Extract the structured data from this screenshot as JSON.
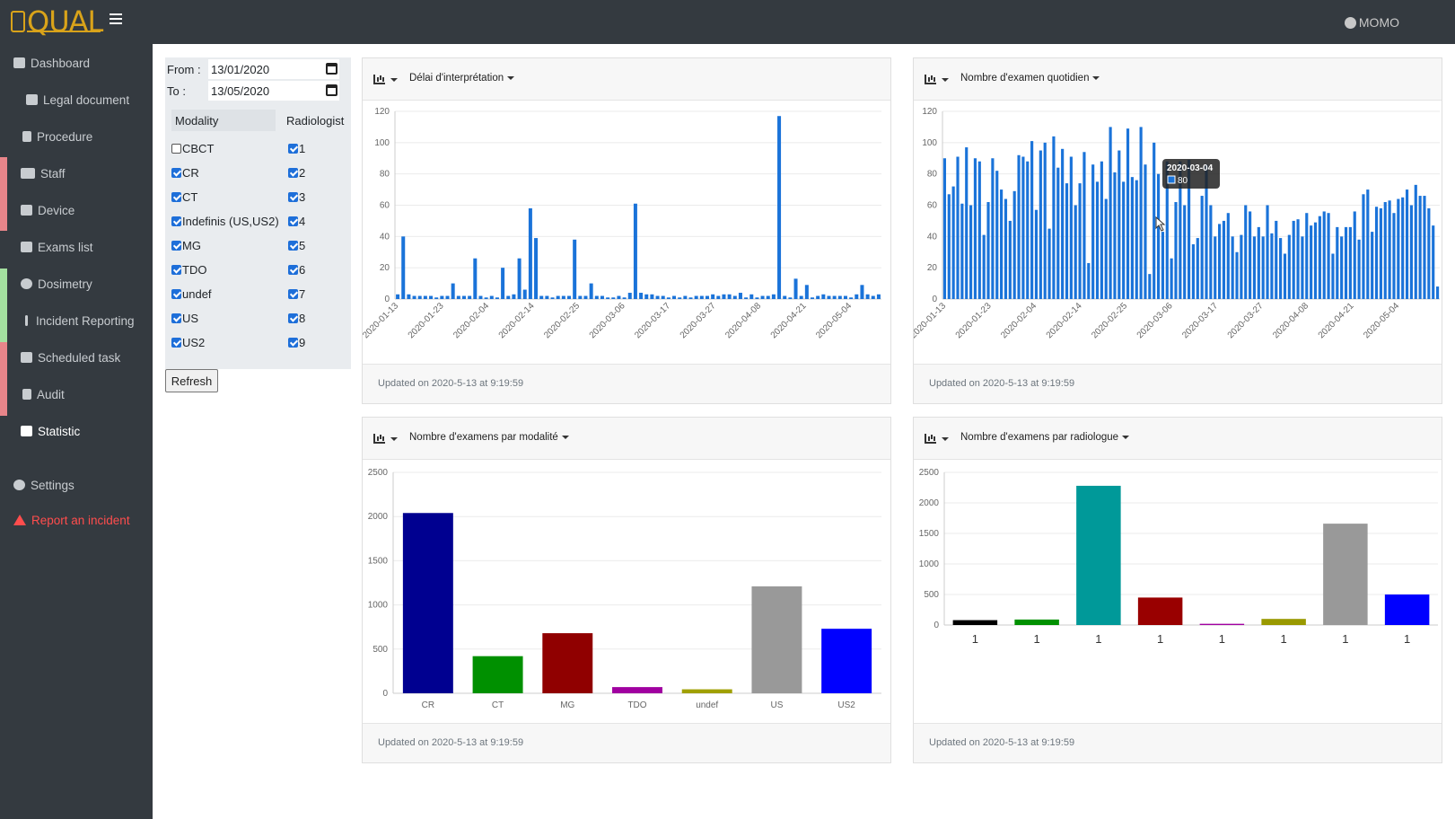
{
  "header": {
    "logo": "QUAL",
    "user": "MOMO"
  },
  "sidebar": {
    "items": [
      {
        "label": "Dashboard",
        "icon": "dashboard-icon"
      },
      {
        "label": "Legal document",
        "icon": "document-icon"
      },
      {
        "label": "Procedure",
        "icon": "file-icon"
      },
      {
        "label": "Staff",
        "icon": "users-icon"
      },
      {
        "label": "Device",
        "icon": "device-icon"
      },
      {
        "label": "Exams list",
        "icon": "list-icon"
      },
      {
        "label": "Dosimetry",
        "icon": "radiation-icon"
      },
      {
        "label": "Incident Reporting",
        "icon": "exclamation-icon"
      },
      {
        "label": "Scheduled task",
        "icon": "tasks-icon"
      },
      {
        "label": "Audit",
        "icon": "thumbtack-icon"
      },
      {
        "label": "Statistic",
        "icon": "chart-icon"
      },
      {
        "label": "Settings",
        "icon": "gear-icon"
      },
      {
        "label": "Report an incident",
        "icon": "warning-icon"
      }
    ],
    "strip_colors": [
      "#e8858a",
      "#a4e0a0",
      "#e8858a"
    ]
  },
  "filter": {
    "from_label": "From :",
    "from_value": "13/01/2020",
    "to_label": "To :",
    "to_value": "13/05/2020",
    "modality_header": "Modality",
    "radiologist_header": "Radiologist",
    "modalities": [
      {
        "label": "CBCT",
        "checked": false
      },
      {
        "label": "CR",
        "checked": true
      },
      {
        "label": "CT",
        "checked": true
      },
      {
        "label": "Indefinis (US,US2)",
        "checked": true
      },
      {
        "label": "MG",
        "checked": true
      },
      {
        "label": "TDO",
        "checked": true
      },
      {
        "label": "undef",
        "checked": true
      },
      {
        "label": "US",
        "checked": true
      },
      {
        "label": "US2",
        "checked": true
      }
    ],
    "radiologists": [
      "1",
      "2",
      "3",
      "4",
      "5",
      "6",
      "7",
      "8",
      "9"
    ],
    "refresh_label": "Refresh"
  },
  "cards": [
    {
      "title": "Délai d'interprétation",
      "footer": "Updated on 2020-5-13 at 9:19:59"
    },
    {
      "title": "Nombre d'examen quotidien",
      "footer": "Updated on 2020-5-13 at 9:19:59"
    },
    {
      "title": "Nombre d'examens par modalité",
      "footer": "Updated on 2020-5-13 at 9:19:59"
    },
    {
      "title": "Nombre d'examens par radiologue",
      "footer": "Updated on 2020-5-13 at 9:19:59"
    }
  ],
  "chart_data": [
    {
      "type": "bar",
      "title": "Délai d'interprétation",
      "ylim": [
        0,
        120
      ],
      "yticks": [
        0,
        20,
        40,
        60,
        80,
        100,
        120
      ],
      "xtick_labels": [
        "2020-01-13",
        "2020-01-23",
        "2020-02-04",
        "2020-02-14",
        "2020-02-25",
        "2020-03-06",
        "2020-03-17",
        "2020-03-27",
        "2020-04-08",
        "2020-04-21",
        "2020-05-04"
      ],
      "color": "#1a73d9",
      "values": [
        3,
        40,
        3,
        2,
        2,
        2,
        2,
        1,
        2,
        2,
        10,
        2,
        2,
        2,
        26,
        2,
        1,
        2,
        1,
        20,
        2,
        3,
        26,
        6,
        58,
        39,
        2,
        2,
        1,
        2,
        2,
        2,
        38,
        2,
        2,
        10,
        2,
        2,
        1,
        1,
        2,
        1,
        4,
        61,
        4,
        3,
        3,
        2,
        2,
        1,
        2,
        1,
        2,
        1,
        2,
        2,
        2,
        3,
        2,
        3,
        3,
        2,
        4,
        1,
        3,
        1,
        2,
        2,
        3,
        117,
        2,
        1,
        13,
        2,
        9,
        1,
        2,
        3,
        2,
        2,
        2,
        2,
        1,
        3,
        9,
        3,
        2,
        3
      ]
    },
    {
      "type": "bar",
      "title": "Nombre d'examen quotidien",
      "ylim": [
        0,
        120
      ],
      "yticks": [
        0,
        20,
        40,
        60,
        80,
        100,
        120
      ],
      "xtick_labels": [
        "2020-01-13",
        "2020-01-23",
        "2020-02-04",
        "2020-02-14",
        "2020-02-25",
        "2020-03-06",
        "2020-03-17",
        "2020-03-27",
        "2020-04-08",
        "2020-04-21",
        "2020-05-04"
      ],
      "color": "#1a73d9",
      "tooltip": {
        "date": "2020-03-04",
        "value": "80"
      },
      "values": [
        90,
        67,
        72,
        91,
        61,
        97,
        60,
        90,
        88,
        41,
        62,
        90,
        82,
        70,
        64,
        50,
        69,
        92,
        91,
        88,
        101,
        57,
        95,
        100,
        45,
        104,
        84,
        96,
        74,
        91,
        60,
        74,
        94,
        23,
        86,
        75,
        88,
        64,
        110,
        81,
        95,
        75,
        109,
        78,
        76,
        110,
        86,
        16,
        100,
        80,
        43,
        88,
        26,
        62,
        88,
        60,
        89,
        35,
        39,
        66,
        86,
        60,
        40,
        48,
        50,
        55,
        40,
        30,
        41,
        60,
        56,
        40,
        46,
        40,
        60,
        42,
        50,
        39,
        29,
        41,
        50,
        51,
        40,
        55,
        47,
        49,
        53,
        56,
        55,
        29,
        46,
        40,
        46,
        46,
        56,
        38,
        67,
        70,
        43,
        59,
        58,
        62,
        63,
        55,
        64,
        65,
        70,
        60,
        73,
        66,
        66,
        58,
        47,
        8
      ]
    },
    {
      "type": "bar",
      "title": "Nombre d'examens par modalité",
      "ylim": [
        0,
        2500
      ],
      "yticks": [
        0,
        500,
        1000,
        1500,
        2000,
        2500
      ],
      "categories": [
        "CR",
        "CT",
        "MG",
        "TDO",
        "undef",
        "US",
        "US2"
      ],
      "values": [
        2040,
        420,
        680,
        70,
        45,
        1210,
        730
      ],
      "colors": [
        "#000090",
        "#009000",
        "#900000",
        "#a000a0",
        "#a0a000",
        "#999999",
        "#0000ff"
      ]
    },
    {
      "type": "bar",
      "title": "Nombre d'examens par radiologue",
      "ylim": [
        0,
        2500
      ],
      "yticks": [
        0,
        500,
        1000,
        1500,
        2000,
        2500
      ],
      "categories": [
        "1",
        "1",
        "1",
        "1",
        "1",
        "1",
        "1",
        "1"
      ],
      "values": [
        80,
        90,
        2280,
        450,
        20,
        100,
        1660,
        500
      ],
      "colors": [
        "#000000",
        "#009000",
        "#009999",
        "#990000",
        "#a000a0",
        "#999900",
        "#999999",
        "#0000ff"
      ]
    }
  ]
}
